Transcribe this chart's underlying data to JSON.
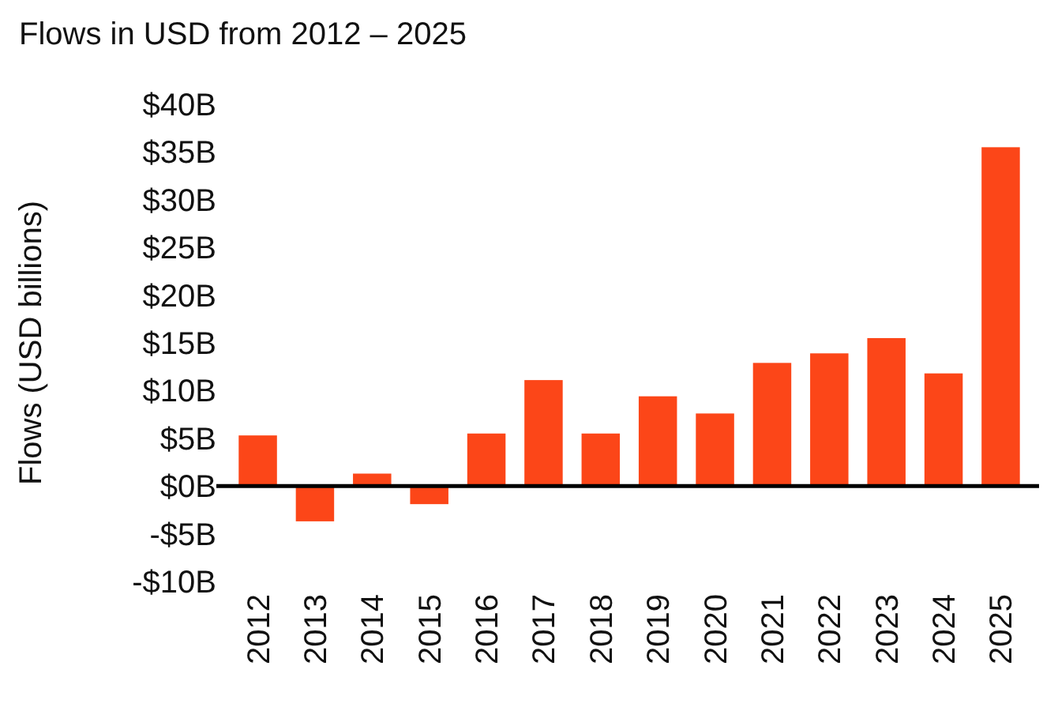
{
  "chart_data": {
    "type": "bar",
    "subtitle": "Flows in USD from 2012 – 2025",
    "ylabel": "Flows (USD billions)",
    "categories": [
      "2012",
      "2013",
      "2014",
      "2015",
      "2016",
      "2017",
      "2018",
      "2019",
      "2020",
      "2021",
      "2022",
      "2023",
      "2024",
      "2025"
    ],
    "values": [
      5.3,
      -3.7,
      1.3,
      -1.9,
      5.5,
      11.1,
      5.5,
      9.4,
      7.6,
      12.9,
      13.9,
      15.5,
      11.8,
      35.5
    ],
    "color": "#fc4618",
    "ylim": [
      -10,
      40
    ],
    "yticks": [
      {
        "value": -10,
        "label": "-$10B"
      },
      {
        "value": -5,
        "label": "-$5B"
      },
      {
        "value": 0,
        "label": "$0B"
      },
      {
        "value": 5,
        "label": "$5B"
      },
      {
        "value": 10,
        "label": "$10B"
      },
      {
        "value": 15,
        "label": "$15B"
      },
      {
        "value": 20,
        "label": "$20B"
      },
      {
        "value": 25,
        "label": "$25B"
      },
      {
        "value": 30,
        "label": "$30B"
      },
      {
        "value": 35,
        "label": "$35B"
      },
      {
        "value": 40,
        "label": "$40B"
      }
    ],
    "ref_lines": [
      {
        "axis": "y",
        "value": 0,
        "color": "#000000"
      }
    ]
  }
}
